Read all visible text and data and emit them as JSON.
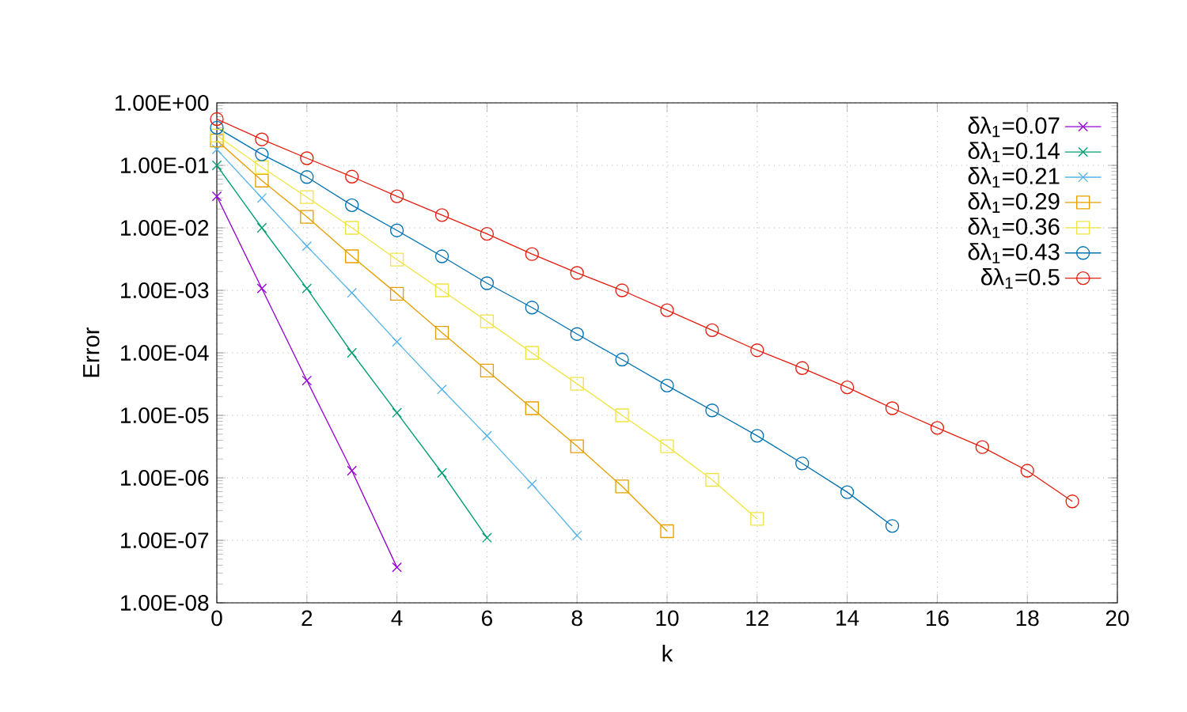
{
  "chart_data": {
    "type": "line",
    "xlabel": "k",
    "ylabel": "Error",
    "log": "y",
    "grid": true,
    "legend": "top right",
    "line_style": "solid",
    "xlim": [
      0,
      20
    ],
    "xticks": [
      0,
      2,
      4,
      6,
      8,
      10,
      12,
      14,
      16,
      18,
      20
    ],
    "ylim": [
      1e-08,
      1
    ],
    "yticks": [
      {
        "value": 1e-08,
        "label": "1.00E-08"
      },
      {
        "value": 1e-07,
        "label": "1.00E-07"
      },
      {
        "value": 1e-06,
        "label": "1.00E-06"
      },
      {
        "value": 1e-05,
        "label": "1.00E-05"
      },
      {
        "value": 0.0001,
        "label": "1.00E-04"
      },
      {
        "value": 0.001,
        "label": "1.00E-03"
      },
      {
        "value": 0.01,
        "label": "1.00E-02"
      },
      {
        "value": 0.1,
        "label": "1.00E-01"
      },
      {
        "value": 1,
        "label": "1.00E+00"
      }
    ],
    "series": [
      {
        "name": "δλ$_{1}$=0.07",
        "color": "#9400d3",
        "marker": "cross",
        "x": [
          0,
          1,
          2,
          3,
          4
        ],
        "values": [
          0.032,
          0.00107,
          3.6e-05,
          1.3e-06,
          3.7e-08
        ]
      },
      {
        "name": "δλ$_{1}$=0.14",
        "color": "#009e73",
        "marker": "cross",
        "x": [
          0,
          1,
          2,
          3,
          4,
          5,
          6
        ],
        "values": [
          0.1,
          0.01,
          0.00107,
          0.0001,
          1.1e-05,
          1.2e-06,
          1.1e-07
        ]
      },
      {
        "name": "δλ$_{1}$=0.21",
        "color": "#56b4e9",
        "marker": "cross",
        "x": [
          0,
          1,
          2,
          3,
          4,
          5,
          6,
          7,
          8
        ],
        "values": [
          0.18,
          0.03,
          0.0051,
          0.00091,
          0.00015,
          2.6e-05,
          4.7e-06,
          7.9e-07,
          1.2e-07
        ]
      },
      {
        "name": "δλ$_{1}$=0.29",
        "color": "#e69f00",
        "marker": "square",
        "x": [
          0,
          1,
          2,
          3,
          4,
          5,
          6,
          7,
          8,
          9,
          10
        ],
        "values": [
          0.25,
          0.057,
          0.015,
          0.0035,
          0.00088,
          0.00021,
          5.2e-05,
          1.3e-05,
          3.2e-06,
          7.3e-07,
          1.4e-07
        ]
      },
      {
        "name": "δλ$_{1}$=0.36",
        "color": "#f0e442",
        "marker": "square",
        "x": [
          0,
          1,
          2,
          3,
          4,
          5,
          6,
          7,
          8,
          9,
          10,
          11,
          12
        ],
        "values": [
          0.3,
          0.093,
          0.031,
          0.01,
          0.0031,
          0.001,
          0.00032,
          0.0001,
          3.2e-05,
          1e-05,
          3.2e-06,
          9.3e-07,
          2.2e-07
        ]
      },
      {
        "name": "δλ$_{1}$=0.43",
        "color": "#0072b2",
        "marker": "circle",
        "x": [
          0,
          1,
          2,
          3,
          4,
          5,
          6,
          7,
          8,
          9,
          10,
          11,
          12,
          13,
          14,
          15
        ],
        "values": [
          0.4,
          0.15,
          0.065,
          0.023,
          0.0091,
          0.0035,
          0.0013,
          0.00053,
          0.0002,
          7.8e-05,
          3e-05,
          1.2e-05,
          4.7e-06,
          1.7e-06,
          5.9e-07,
          1.7e-07
        ]
      },
      {
        "name": "δλ$_{1}$=0.5",
        "color": "#e51e10",
        "marker": "circle",
        "x": [
          0,
          1,
          2,
          3,
          4,
          5,
          6,
          7,
          8,
          9,
          10,
          11,
          12,
          13,
          14,
          15,
          16,
          17,
          18,
          19
        ],
        "values": [
          0.55,
          0.26,
          0.13,
          0.066,
          0.032,
          0.016,
          0.008,
          0.0038,
          0.0019,
          0.001,
          0.00048,
          0.00023,
          0.00011,
          5.7e-05,
          2.8e-05,
          1.3e-05,
          6.3e-06,
          3.1e-06,
          1.3e-06,
          4.2e-07
        ]
      }
    ]
  }
}
